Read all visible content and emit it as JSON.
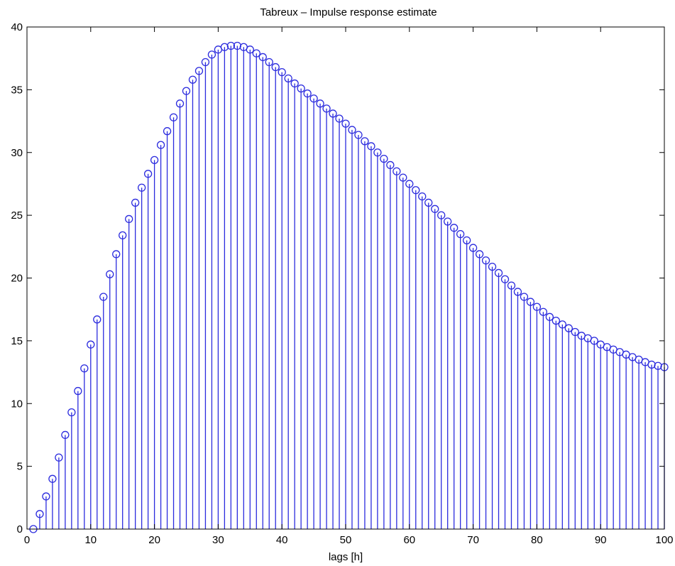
{
  "chart_data": {
    "type": "stem",
    "title": "Tabreux – Impulse response estimate",
    "xlabel": "lags [h]",
    "ylabel": "",
    "xlim": [
      0,
      100
    ],
    "ylim": [
      0,
      40
    ],
    "xticks": [
      0,
      10,
      20,
      30,
      40,
      50,
      60,
      70,
      80,
      90,
      100
    ],
    "yticks": [
      0,
      5,
      10,
      15,
      20,
      25,
      30,
      35,
      40
    ],
    "grid": false,
    "colors": {
      "stem": "#2b2bde",
      "axes": "#000000",
      "background": "#ffffff"
    },
    "series": [
      {
        "x": [
          1,
          2,
          3,
          4,
          5,
          6,
          7,
          8,
          9,
          10,
          11,
          12,
          13,
          14,
          15,
          16,
          17,
          18,
          19,
          20,
          21,
          22,
          23,
          24,
          25,
          26,
          27,
          28,
          29,
          30,
          31,
          32,
          33,
          34,
          35,
          36,
          37,
          38,
          39,
          40,
          41,
          42,
          43,
          44,
          45,
          46,
          47,
          48,
          49,
          50,
          51,
          52,
          53,
          54,
          55,
          56,
          57,
          58,
          59,
          60,
          61,
          62,
          63,
          64,
          65,
          66,
          67,
          68,
          69,
          70,
          71,
          72,
          73,
          74,
          75,
          76,
          77,
          78,
          79,
          80,
          81,
          82,
          83,
          84,
          85,
          86,
          87,
          88,
          89,
          90,
          91,
          92,
          93,
          94,
          95,
          96,
          97,
          98,
          99,
          100
        ],
        "values": [
          0.0,
          1.2,
          2.6,
          4.0,
          5.7,
          7.5,
          9.3,
          11.0,
          12.8,
          14.7,
          16.7,
          18.5,
          20.3,
          21.9,
          23.4,
          24.7,
          26.0,
          27.2,
          28.3,
          29.4,
          30.6,
          31.7,
          32.8,
          33.9,
          34.9,
          35.8,
          36.5,
          37.2,
          37.8,
          38.2,
          38.4,
          38.5,
          38.5,
          38.4,
          38.2,
          37.9,
          37.6,
          37.2,
          36.8,
          36.4,
          35.9,
          35.5,
          35.1,
          34.7,
          34.3,
          33.9,
          33.5,
          33.1,
          32.7,
          32.3,
          31.8,
          31.4,
          30.9,
          30.5,
          30.0,
          29.5,
          29.0,
          28.5,
          28.0,
          27.5,
          27.0,
          26.5,
          26.0,
          25.5,
          25.0,
          24.5,
          24.0,
          23.5,
          23.0,
          22.4,
          21.9,
          21.4,
          20.9,
          20.4,
          19.9,
          19.4,
          18.9,
          18.5,
          18.1,
          17.7,
          17.3,
          16.9,
          16.6,
          16.3,
          16.0,
          15.7,
          15.4,
          15.2,
          15.0,
          14.7,
          14.5,
          14.3,
          14.1,
          13.9,
          13.7,
          13.5,
          13.3,
          13.1,
          13.0,
          12.9
        ]
      }
    ]
  }
}
